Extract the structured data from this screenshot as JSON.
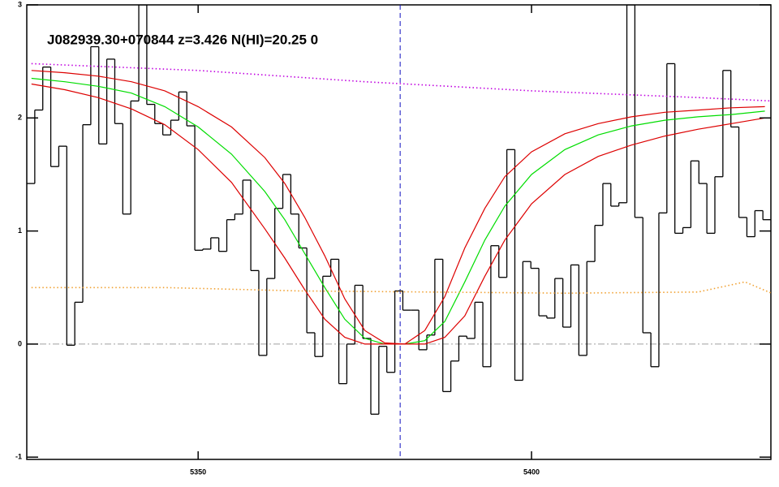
{
  "chart_data": {
    "type": "line",
    "title": "J082939.30+070844 z=3.426 N(HI)=20.25 0",
    "xlim": [
      5324.3,
      5435.9
    ],
    "ylim": [
      -1.02,
      3.0
    ],
    "xticks": [
      5350,
      5400
    ],
    "yticks": [
      -1,
      0,
      1,
      2,
      3
    ],
    "vline": {
      "x": 5380.3,
      "color": "#1010c0"
    },
    "hline": {
      "y": 0,
      "color": "#a0a0a0"
    },
    "series": [
      {
        "style": "step",
        "color": "#000000",
        "x": [
          5324.9,
          5326.1,
          5327.3,
          5328.5,
          5329.7,
          5330.9,
          5332.1,
          5333.3,
          5334.5,
          5335.7,
          5336.9,
          5338.1,
          5339.3,
          5340.5,
          5341.7,
          5342.9,
          5344.1,
          5345.3,
          5346.5,
          5347.7,
          5348.9,
          5350.1,
          5351.3,
          5352.5,
          5353.7,
          5354.9,
          5356.1,
          5357.3,
          5358.5,
          5359.7,
          5360.9,
          5362.1,
          5363.3,
          5364.5,
          5365.7,
          5366.9,
          5368.1,
          5369.3,
          5370.5,
          5371.7,
          5372.9,
          5374.1,
          5375.3,
          5376.5,
          5377.7,
          5378.9,
          5380.1,
          5381.3,
          5382.5,
          5383.7,
          5384.9,
          5386.1,
          5387.3,
          5388.5,
          5389.7,
          5390.9,
          5392.1,
          5393.3,
          5394.5,
          5395.7,
          5396.9,
          5398.1,
          5399.3,
          5400.5,
          5401.7,
          5402.9,
          5404.1,
          5405.3,
          5406.5,
          5407.7,
          5408.9,
          5410.1,
          5411.3,
          5412.5,
          5413.7,
          5414.9,
          5416.1,
          5417.3,
          5418.5,
          5419.7,
          5420.9,
          5422.1,
          5423.3,
          5424.5,
          5425.7,
          5426.9,
          5428.1,
          5429.3,
          5430.5,
          5431.7,
          5432.9,
          5434.1,
          5435.3
        ],
        "values": [
          1.42,
          2.07,
          2.45,
          1.57,
          1.75,
          -0.01,
          0.37,
          1.94,
          2.63,
          1.77,
          2.52,
          1.95,
          1.15,
          2.15,
          3.0,
          2.12,
          1.95,
          1.85,
          1.98,
          2.23,
          1.93,
          0.83,
          0.84,
          0.94,
          0.82,
          1.1,
          1.15,
          1.45,
          0.65,
          -0.1,
          0.58,
          1.2,
          1.5,
          1.15,
          0.85,
          0.1,
          -0.11,
          0.6,
          0.75,
          -0.35,
          0.0,
          0.52,
          0.05,
          -0.62,
          -0.02,
          -0.25,
          0.47,
          0.3,
          0.3,
          -0.05,
          0.08,
          0.75,
          -0.42,
          -0.15,
          0.07,
          0.05,
          0.37,
          -0.2,
          0.87,
          0.59,
          1.72,
          -0.32,
          0.73,
          0.67,
          0.25,
          0.23,
          0.58,
          0.15,
          0.7,
          -0.1,
          0.73,
          1.05,
          1.42,
          1.22,
          1.25,
          3.0,
          1.12,
          0.1,
          -0.2,
          1.16,
          2.48,
          0.98,
          1.03,
          1.62,
          1.42,
          0.98,
          1.48,
          2.42,
          1.92,
          1.12,
          0.95,
          1.18,
          1.1
        ]
      },
      {
        "style": "solid",
        "color": "#00dd00",
        "x": [
          5325,
          5330,
          5335,
          5340,
          5345,
          5350,
          5355,
          5360,
          5363,
          5366,
          5369,
          5372,
          5375,
          5378,
          5381,
          5384,
          5387,
          5390,
          5393,
          5396,
          5400,
          5405,
          5410,
          5415,
          5420,
          5425,
          5430,
          5435
        ],
        "values": [
          2.35,
          2.32,
          2.28,
          2.22,
          2.1,
          1.92,
          1.68,
          1.35,
          1.1,
          0.8,
          0.5,
          0.22,
          0.05,
          0.0,
          0.0,
          0.03,
          0.2,
          0.55,
          0.92,
          1.22,
          1.5,
          1.72,
          1.85,
          1.93,
          1.98,
          2.01,
          2.03,
          2.06
        ]
      },
      {
        "style": "solid",
        "color": "#dd0000",
        "x": [
          5325,
          5330,
          5335,
          5340,
          5345,
          5350,
          5355,
          5360,
          5363,
          5366,
          5369,
          5372,
          5375,
          5378,
          5381,
          5384,
          5387,
          5390,
          5393,
          5396,
          5400,
          5405,
          5410,
          5415,
          5420,
          5425,
          5430,
          5435
        ],
        "values": [
          2.42,
          2.4,
          2.37,
          2.32,
          2.24,
          2.1,
          1.92,
          1.65,
          1.42,
          1.12,
          0.78,
          0.4,
          0.12,
          0.01,
          0.0,
          0.12,
          0.42,
          0.85,
          1.2,
          1.48,
          1.7,
          1.86,
          1.95,
          2.01,
          2.05,
          2.07,
          2.09,
          2.1
        ]
      },
      {
        "style": "solid",
        "color": "#dd0000",
        "x": [
          5325,
          5330,
          5335,
          5340,
          5345,
          5350,
          5355,
          5360,
          5363,
          5366,
          5369,
          5372,
          5375,
          5378,
          5381,
          5384,
          5387,
          5390,
          5393,
          5396,
          5400,
          5405,
          5410,
          5415,
          5420,
          5425,
          5430,
          5435
        ],
        "values": [
          2.3,
          2.25,
          2.18,
          2.08,
          1.94,
          1.72,
          1.43,
          1.02,
          0.76,
          0.48,
          0.22,
          0.06,
          0.0,
          0.0,
          0.0,
          0.0,
          0.06,
          0.25,
          0.6,
          0.92,
          1.24,
          1.5,
          1.66,
          1.76,
          1.84,
          1.9,
          1.95,
          2.0
        ]
      },
      {
        "style": "dotted",
        "color": "#c000e0",
        "x": [
          5325,
          5350,
          5375,
          5400,
          5425,
          5436
        ],
        "values": [
          2.48,
          2.42,
          2.32,
          2.24,
          2.18,
          2.15
        ]
      },
      {
        "style": "dotted",
        "color": "#f0a030",
        "x": [
          5325,
          5345,
          5365,
          5385,
          5405,
          5425,
          5432,
          5436
        ],
        "values": [
          0.5,
          0.5,
          0.47,
          0.46,
          0.45,
          0.46,
          0.55,
          0.45
        ]
      }
    ]
  }
}
